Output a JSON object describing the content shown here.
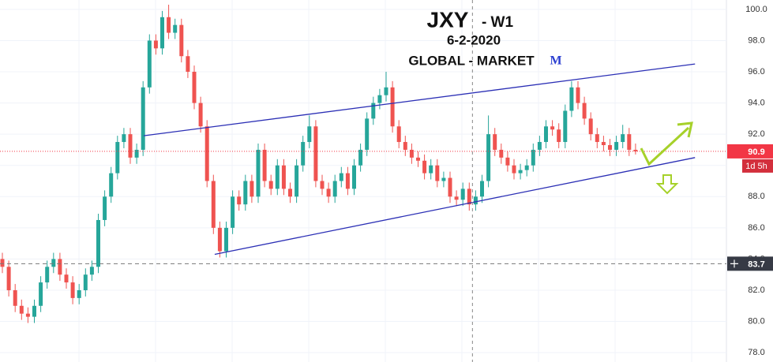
{
  "chart_data": {
    "type": "candlestick",
    "title": "JXY",
    "timeframe": "- W1",
    "date": "6-2-2020",
    "brand": "GLOBAL - MARKET",
    "logo": "M",
    "up_color": "#26a69a",
    "down_color": "#ef5350",
    "open": [
      84,
      83.5,
      82,
      81,
      80.5,
      80.3,
      81,
      82.5,
      83.5,
      84,
      83,
      82.5,
      81.5,
      82,
      83,
      83.5,
      86.5,
      88,
      89.5,
      91.5,
      92,
      90.5,
      91,
      95,
      98,
      97.5,
      99.5,
      98.5,
      99,
      97,
      96,
      94,
      92.5,
      89,
      86,
      84.5,
      86,
      88,
      87.5,
      89,
      88,
      91,
      89,
      88.5,
      90,
      88.5,
      88,
      90,
      91.5,
      92.5,
      89,
      88.5,
      88,
      89,
      89.5,
      88.5,
      90,
      91,
      93,
      94,
      94.5,
      95,
      92.5,
      91.5,
      91,
      90.5,
      90.3,
      89.5,
      90,
      89,
      89.2,
      88,
      87.8,
      88.5,
      87.5,
      88,
      89,
      92,
      91,
      90.5,
      90,
      89.5,
      89.7,
      90,
      91,
      91.5,
      92.5,
      92.3,
      91.5,
      93.5,
      95,
      94,
      93,
      92,
      91.5,
      91.3,
      91,
      91.5,
      92,
      91
    ],
    "high": [
      84.4,
      83.9,
      82.4,
      81.4,
      80.9,
      81.4,
      82.9,
      83.9,
      84.4,
      84.4,
      83.4,
      82.9,
      82.4,
      83.4,
      83.9,
      86.9,
      88.4,
      89.9,
      91.9,
      92.4,
      92.4,
      91.4,
      95.4,
      98.4,
      98.4,
      99.9,
      100.3,
      99.4,
      99.4,
      97.4,
      96.4,
      94.4,
      92.9,
      89.4,
      86.4,
      86.4,
      88.4,
      88.4,
      89.4,
      89.4,
      91.4,
      91.4,
      89.4,
      90.4,
      90.4,
      88.9,
      90.4,
      91.9,
      93.2,
      92.9,
      89.4,
      88.9,
      89.4,
      89.9,
      89.9,
      90.4,
      91.4,
      93.4,
      94.4,
      94.9,
      96.0,
      95.4,
      92.9,
      91.9,
      91.4,
      90.9,
      90.7,
      90.4,
      90.4,
      89.6,
      89.6,
      88.4,
      88.9,
      88.9,
      88.4,
      89.4,
      93.2,
      92.4,
      91.4,
      90.9,
      90.4,
      90.1,
      90.4,
      91.4,
      91.9,
      92.9,
      92.9,
      92.7,
      93.9,
      95.4,
      95.4,
      94.4,
      93.4,
      92.4,
      91.9,
      91.7,
      91.9,
      92.6,
      92.4,
      91.4
    ],
    "low": [
      83.1,
      81.6,
      80.6,
      80.1,
      79.9,
      79.9,
      80.6,
      82.1,
      83.1,
      82.6,
      82.1,
      81.1,
      81.1,
      81.6,
      82.6,
      83.1,
      86.1,
      87.6,
      89.1,
      91.1,
      90.1,
      90.1,
      90.6,
      94.6,
      97.1,
      97.1,
      98.1,
      98.1,
      96.6,
      95.6,
      93.6,
      92.1,
      88.6,
      85.6,
      84.1,
      84.1,
      85.6,
      87.1,
      87.1,
      87.6,
      87.6,
      88.6,
      88.1,
      88.1,
      88.1,
      87.6,
      87.6,
      89.6,
      91.1,
      88.6,
      88.1,
      87.6,
      87.6,
      88.6,
      88.1,
      88.1,
      89.6,
      90.6,
      92.6,
      93.6,
      94.1,
      92.1,
      91.1,
      90.6,
      90.1,
      89.9,
      89.1,
      89.1,
      88.6,
      88.6,
      87.6,
      87.4,
      87.4,
      87.1,
      87.1,
      87.6,
      88.6,
      90.6,
      90.1,
      89.6,
      89.1,
      89.1,
      89.3,
      89.6,
      90.6,
      91.1,
      91.9,
      91.1,
      91.1,
      93.1,
      93.6,
      92.6,
      91.6,
      91.1,
      90.9,
      90.6,
      90.6,
      91.1,
      90.6,
      90.7
    ],
    "close": [
      83.5,
      82,
      81,
      80.5,
      80.3,
      81,
      82.5,
      83.5,
      84,
      83,
      82.5,
      81.5,
      82,
      83,
      83.5,
      86.5,
      88,
      89.5,
      91.5,
      92,
      90.5,
      91,
      95,
      98,
      97.5,
      99.5,
      98.5,
      99,
      97,
      96,
      94,
      92.5,
      89,
      86,
      84.5,
      86,
      88,
      87.5,
      89,
      88,
      91,
      89,
      88.5,
      90,
      88.5,
      88,
      90,
      91.5,
      92.5,
      89,
      88.5,
      88,
      89,
      89.5,
      88.5,
      90,
      91,
      93,
      94,
      94.5,
      95,
      92.5,
      91.5,
      91,
      90.5,
      90.3,
      89.5,
      90,
      89,
      89.2,
      88,
      87.8,
      88.5,
      87.5,
      88,
      89,
      92,
      91,
      90.5,
      90,
      89.5,
      89.7,
      90,
      91,
      91.5,
      92.5,
      92.3,
      91.5,
      93.5,
      95,
      94,
      93,
      92,
      91.5,
      91.3,
      91,
      91.5,
      92,
      91,
      90.9
    ],
    "ylim": [
      77.4,
      100.6
    ],
    "yticks": [
      {
        "value": 78,
        "label": "78.0"
      },
      {
        "value": 80,
        "label": "80.0"
      },
      {
        "value": 82,
        "label": "82.0"
      },
      {
        "value": 84,
        "label": "84.0"
      },
      {
        "value": 86,
        "label": "86.0"
      },
      {
        "value": 88,
        "label": "88.0"
      },
      {
        "value": 90,
        "label": "90.0"
      },
      {
        "value": 92,
        "label": "92.0"
      },
      {
        "value": 94,
        "label": "94.0"
      },
      {
        "value": 96,
        "label": "96.0"
      },
      {
        "value": 98,
        "label": "98.0"
      },
      {
        "value": 100,
        "label": "100.0"
      }
    ],
    "grid": true,
    "trendlines": [
      {
        "color": "#2b2fb5",
        "x": [
          22.1,
          108.3
        ],
        "y": [
          91.9,
          96.5
        ]
      },
      {
        "color": "#2b2fb5",
        "x": [
          33.2,
          108.3
        ],
        "y": [
          84.3,
          90.5
        ]
      }
    ],
    "price_labels": [
      {
        "value": 90.9,
        "label": "90.9",
        "color": "#f23645",
        "countdown": "1d 5h"
      },
      {
        "value": 83.7,
        "label": "83.7",
        "color": "#363a45"
      }
    ],
    "crosshair_index": 73.5
  }
}
